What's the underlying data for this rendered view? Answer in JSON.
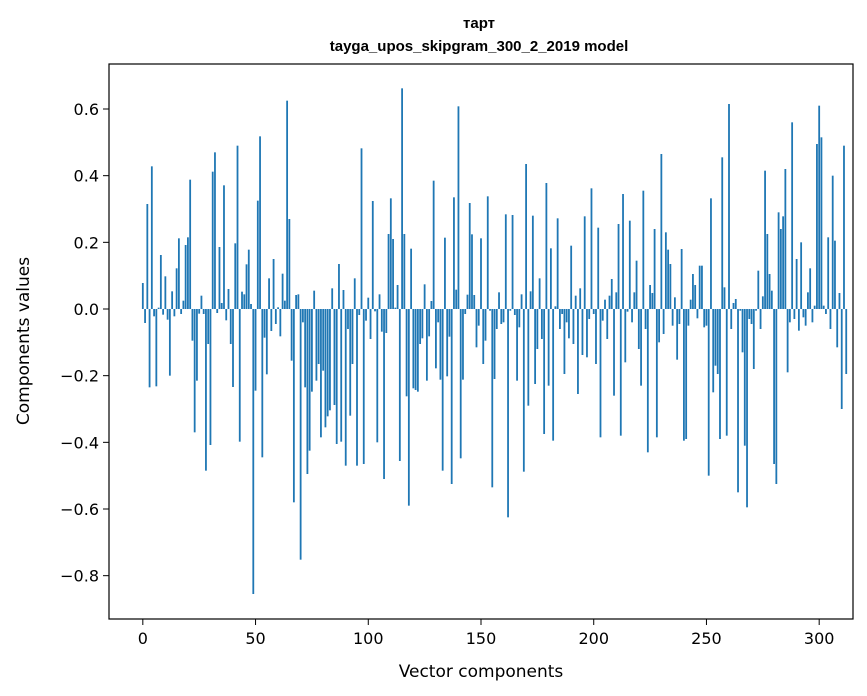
{
  "chart_data": {
    "type": "bar",
    "title": "тарт",
    "subtitle": "tayga_upos_skipgram_300_2_2019 model",
    "xlabel": "Vector components",
    "ylabel": "Components values",
    "xlim": [
      -15,
      315
    ],
    "ylim": [
      -0.93,
      0.735
    ],
    "xticks": [
      0,
      50,
      100,
      150,
      200,
      250,
      300
    ],
    "yticks": [
      -0.8,
      -0.6,
      -0.4,
      -0.2,
      0.0,
      0.2,
      0.4,
      0.6
    ],
    "ytick_labels": [
      "−0.8",
      "−0.6",
      "−0.4",
      "−0.2",
      "0.0",
      "0.2",
      "0.4",
      "0.6"
    ],
    "xtick_labels": [
      "0",
      "50",
      "100",
      "150",
      "200",
      "250",
      "300"
    ],
    "bar_color": "#1f77b4",
    "values": [
      0.078,
      -0.042,
      0.315,
      -0.235,
      0.428,
      -0.022,
      -0.232,
      0.004,
      0.162,
      -0.017,
      0.098,
      -0.032,
      -0.2,
      0.053,
      -0.022,
      0.122,
      0.212,
      -0.015,
      0.025,
      0.192,
      0.215,
      0.388,
      -0.095,
      -0.37,
      -0.215,
      -0.014,
      0.04,
      -0.015,
      -0.485,
      -0.105,
      -0.408,
      0.412,
      0.47,
      -0.012,
      0.186,
      0.018,
      0.371,
      -0.034,
      0.06,
      -0.105,
      -0.234,
      0.197,
      0.49,
      -0.398,
      0.052,
      0.044,
      0.134,
      0.178,
      0.015,
      -0.855,
      -0.245,
      0.325,
      0.518,
      -0.445,
      -0.086,
      -0.196,
      0.092,
      -0.066,
      0.15,
      -0.045,
      0.005,
      -0.082,
      0.106,
      0.025,
      0.625,
      0.27,
      -0.155,
      -0.58,
      0.042,
      0.044,
      -0.752,
      -0.04,
      -0.235,
      -0.495,
      -0.425,
      -0.248,
      0.055,
      -0.215,
      -0.165,
      -0.385,
      -0.185,
      -0.355,
      -0.322,
      -0.304,
      0.062,
      -0.288,
      -0.405,
      0.135,
      -0.398,
      0.057,
      -0.47,
      -0.06,
      -0.32,
      -0.165,
      0.092,
      -0.47,
      -0.018,
      0.482,
      -0.465,
      -0.035,
      0.034,
      -0.09,
      0.324,
      -0.007,
      -0.4,
      0.044,
      -0.068,
      -0.51,
      -0.072,
      0.225,
      0.332,
      0.21,
      0.004,
      0.072,
      -0.456,
      0.662,
      0.225,
      -0.262,
      -0.59,
      0.181,
      -0.238,
      -0.243,
      -0.248,
      -0.105,
      -0.088,
      0.074,
      -0.215,
      -0.082,
      0.024,
      0.385,
      -0.178,
      -0.04,
      -0.212,
      -0.485,
      0.214,
      -0.202,
      -0.083,
      -0.525,
      0.335,
      0.058,
      0.608,
      -0.448,
      -0.212,
      -0.015,
      0.043,
      0.318,
      0.224,
      0.042,
      -0.115,
      -0.05,
      0.212,
      -0.165,
      -0.095,
      0.338,
      -0.005,
      -0.535,
      -0.21,
      -0.06,
      0.05,
      -0.045,
      -0.04,
      0.284,
      -0.625,
      -0.005,
      0.282,
      -0.018,
      -0.215,
      -0.055,
      0.044,
      -0.488,
      0.435,
      -0.29,
      0.053,
      0.28,
      -0.225,
      -0.12,
      0.092,
      -0.09,
      -0.375,
      0.378,
      -0.23,
      0.182,
      -0.395,
      0.008,
      0.272,
      -0.06,
      -0.015,
      -0.195,
      -0.04,
      -0.088,
      0.19,
      -0.105,
      0.04,
      -0.255,
      0.062,
      -0.138,
      0.278,
      -0.145,
      -0.03,
      0.362,
      -0.015,
      -0.165,
      0.244,
      -0.385,
      -0.035,
      0.028,
      -0.09,
      0.04,
      0.09,
      -0.26,
      0.05,
      0.255,
      -0.38,
      0.345,
      -0.16,
      -0.008,
      0.265,
      -0.04,
      0.05,
      0.145,
      -0.12,
      -0.23,
      0.355,
      -0.06,
      -0.43,
      0.072,
      0.048,
      0.24,
      -0.385,
      -0.1,
      0.465,
      -0.075,
      0.23,
      0.178,
      0.135,
      -0.05,
      0.035,
      -0.152,
      -0.045,
      0.18,
      -0.395,
      -0.39,
      -0.05,
      0.028,
      0.105,
      0.072,
      -0.028,
      0.13,
      0.13,
      -0.055,
      -0.05,
      -0.5,
      0.332,
      -0.25,
      -0.17,
      -0.195,
      -0.39,
      0.455,
      0.065,
      -0.38,
      0.615,
      -0.06,
      0.018,
      0.03,
      -0.55,
      -0.005,
      -0.13,
      -0.41,
      -0.595,
      -0.03,
      -0.045,
      -0.18,
      -0.005,
      0.115,
      -0.06,
      0.038,
      0.415,
      0.225,
      0.105,
      0.055,
      -0.465,
      -0.525,
      0.29,
      0.24,
      0.278,
      0.42,
      -0.19,
      -0.04,
      0.56,
      -0.03,
      0.15,
      -0.065,
      0.2,
      -0.025,
      -0.05,
      0.05,
      0.122,
      -0.04,
      0.01,
      0.495,
      0.61,
      0.515,
      0.01,
      -0.015,
      0.215,
      -0.06,
      0.4,
      0.205,
      -0.115,
      0.048,
      -0.3,
      0.49,
      -0.195
    ]
  }
}
